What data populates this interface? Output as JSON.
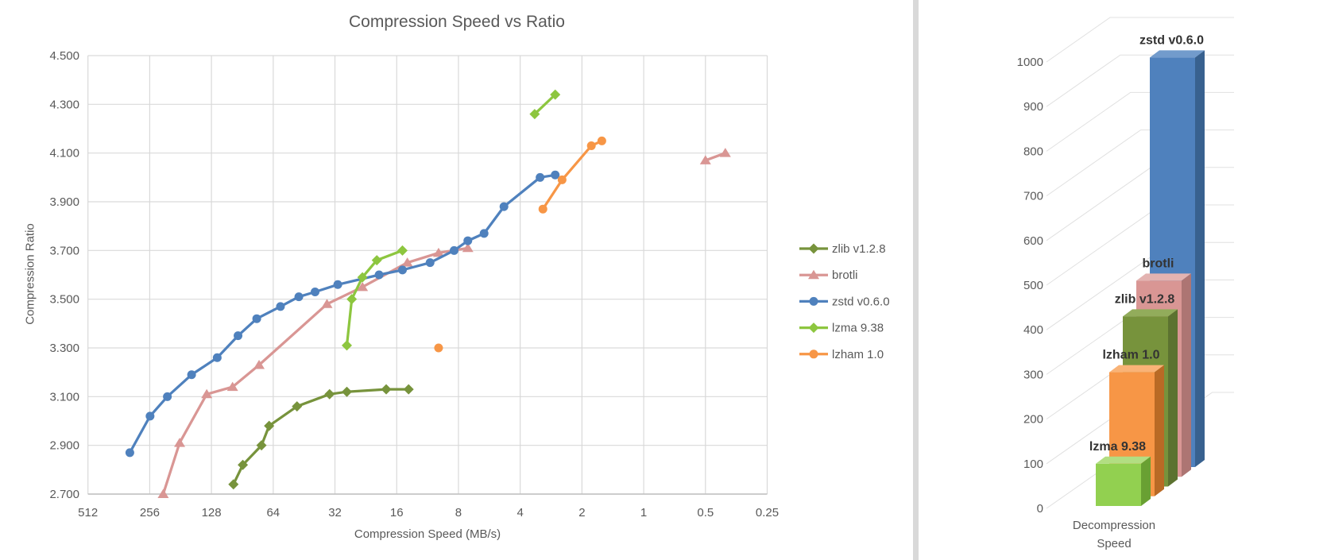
{
  "palette": {
    "background": "#FFFFFF",
    "grid": "#D9D9D9",
    "grid_3d": "#E0E0E0",
    "axis_line": "#BFBFBF",
    "text": "#595959",
    "bar_label_text": "#333333",
    "divider": "#D9D9D9"
  },
  "chart_data": [
    {
      "type": "scatter",
      "title": "Compression Speed vs Ratio",
      "xlabel": "Compression Speed (MB/s)",
      "ylabel": "Compression Ratio",
      "x_scale": "log2-reversed",
      "x_ticks": [
        "512",
        "256",
        "128",
        "64",
        "32",
        "16",
        "8",
        "4",
        "2",
        "1",
        "0.5",
        "0.25"
      ],
      "y_ticks": [
        "4.500",
        "4.300",
        "4.100",
        "3.900",
        "3.700",
        "3.500",
        "3.300",
        "3.100",
        "2.900",
        "2.700"
      ],
      "ylim": [
        2.7,
        4.5
      ],
      "grid": true,
      "legend_position": "right",
      "series": [
        {
          "name": "zlib v1.2.8",
          "color": "#77933C",
          "marker": "diamond",
          "points": [
            [
              100,
              2.74
            ],
            [
              90,
              2.82
            ],
            [
              73,
              2.9
            ],
            [
              67,
              2.98
            ],
            [
              49,
              3.06
            ],
            [
              34,
              3.11
            ],
            [
              28,
              3.12
            ],
            [
              18,
              3.13
            ],
            [
              14,
              3.13
            ]
          ],
          "segments": [
            [
              0,
              8
            ]
          ]
        },
        {
          "name": "brotli",
          "color": "#D99694",
          "marker": "triangle",
          "points": [
            [
              220,
              2.7
            ],
            [
              183,
              2.91
            ],
            [
              135,
              3.11
            ],
            [
              101,
              3.14
            ],
            [
              75,
              3.23
            ],
            [
              35,
              3.48
            ],
            [
              23.5,
              3.55
            ],
            [
              14.2,
              3.65
            ],
            [
              10,
              3.69
            ],
            [
              7.2,
              3.71
            ],
            [
              0.5,
              4.07
            ],
            [
              0.4,
              4.1
            ]
          ],
          "segments": [
            [
              0,
              9
            ],
            [
              10,
              11
            ]
          ]
        },
        {
          "name": "zstd v0.6.0",
          "color": "#4F81BD",
          "marker": "circle",
          "points": [
            [
              320,
              2.87
            ],
            [
              255,
              3.02
            ],
            [
              210,
              3.1
            ],
            [
              160,
              3.19
            ],
            [
              120,
              3.26
            ],
            [
              95,
              3.35
            ],
            [
              77,
              3.42
            ],
            [
              59,
              3.47
            ],
            [
              48,
              3.51
            ],
            [
              40,
              3.53
            ],
            [
              31,
              3.56
            ],
            [
              19.5,
              3.6
            ],
            [
              15,
              3.62
            ],
            [
              11,
              3.65
            ],
            [
              8.4,
              3.7
            ],
            [
              7.2,
              3.74
            ],
            [
              6.0,
              3.77
            ],
            [
              4.8,
              3.88
            ],
            [
              3.2,
              4.0
            ],
            [
              2.7,
              4.01
            ]
          ],
          "segments": [
            [
              0,
              19
            ]
          ]
        },
        {
          "name": "lzma 9.38",
          "color": "#8DC63F",
          "marker": "diamond",
          "points": [
            [
              28,
              3.31
            ],
            [
              26.5,
              3.5
            ],
            [
              23.5,
              3.59
            ],
            [
              20,
              3.66
            ],
            [
              15,
              3.7
            ],
            [
              3.4,
              4.26
            ],
            [
              2.7,
              4.34
            ]
          ],
          "segments": [
            [
              0,
              4
            ],
            [
              5,
              6
            ]
          ]
        },
        {
          "name": "lzham 1.0",
          "color": "#F79646",
          "marker": "circle",
          "points": [
            [
              10,
              3.3
            ],
            [
              3.1,
              3.87
            ],
            [
              2.5,
              3.99
            ],
            [
              1.8,
              4.13
            ],
            [
              1.6,
              4.15
            ]
          ],
          "segments": [
            [
              1,
              4
            ]
          ]
        }
      ]
    },
    {
      "type": "bar",
      "projection": "3d",
      "title": "",
      "categories": [
        "Decompression Speed"
      ],
      "xlabel_lines": [
        "Decompression",
        "Speed"
      ],
      "y_ticks": [
        0,
        100,
        200,
        300,
        400,
        500,
        600,
        700,
        800,
        900,
        1000
      ],
      "ylim": [
        0,
        1000
      ],
      "bars": [
        {
          "name": "lzma 9.38",
          "value": 100,
          "front": "#92D050",
          "side": "#69A033",
          "top": "#B2DE82"
        },
        {
          "name": "lzham 1.0",
          "value": 305,
          "front": "#F79646",
          "side": "#B96A25",
          "top": "#F9B377"
        },
        {
          "name": "zlib v1.2.8",
          "value": 430,
          "front": "#77933C",
          "side": "#5C7230",
          "top": "#92AC5B"
        },
        {
          "name": "brotli",
          "value": 510,
          "front": "#D99694",
          "side": "#AD7573",
          "top": "#E3B3B1"
        },
        {
          "name": "zstd v0.6.0",
          "value": 1010,
          "front": "#4F81BD",
          "side": "#38618F",
          "top": "#729BCC"
        }
      ]
    }
  ]
}
